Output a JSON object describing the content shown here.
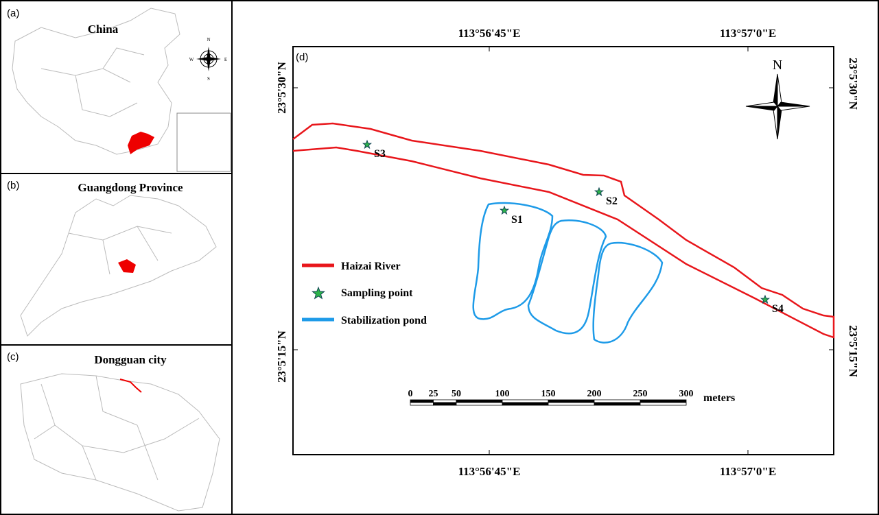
{
  "panels": [
    {
      "label": "(a)",
      "title": "China",
      "compass": [
        "N",
        "E",
        "S",
        "W"
      ]
    },
    {
      "label": "(b)",
      "title": "Guangdong Province"
    },
    {
      "label": "(c)",
      "title": "Dongguan city"
    }
  ],
  "map": {
    "label": "(d)",
    "longitude_labels": [
      "113°56'45\"E",
      "113°57'0\"E"
    ],
    "latitude_labels": [
      "23°5'30\"N",
      "23°5'15\"N"
    ],
    "north": "N",
    "sites": [
      "S1",
      "S2",
      "S3",
      "S4"
    ],
    "legend": [
      "Haizai River",
      "Sampling point",
      "Stabilization pond"
    ],
    "scale_bar": {
      "labels": [
        "0",
        "25",
        "50",
        "100",
        "150",
        "200",
        "250",
        "300"
      ],
      "unit": "meters"
    }
  }
}
